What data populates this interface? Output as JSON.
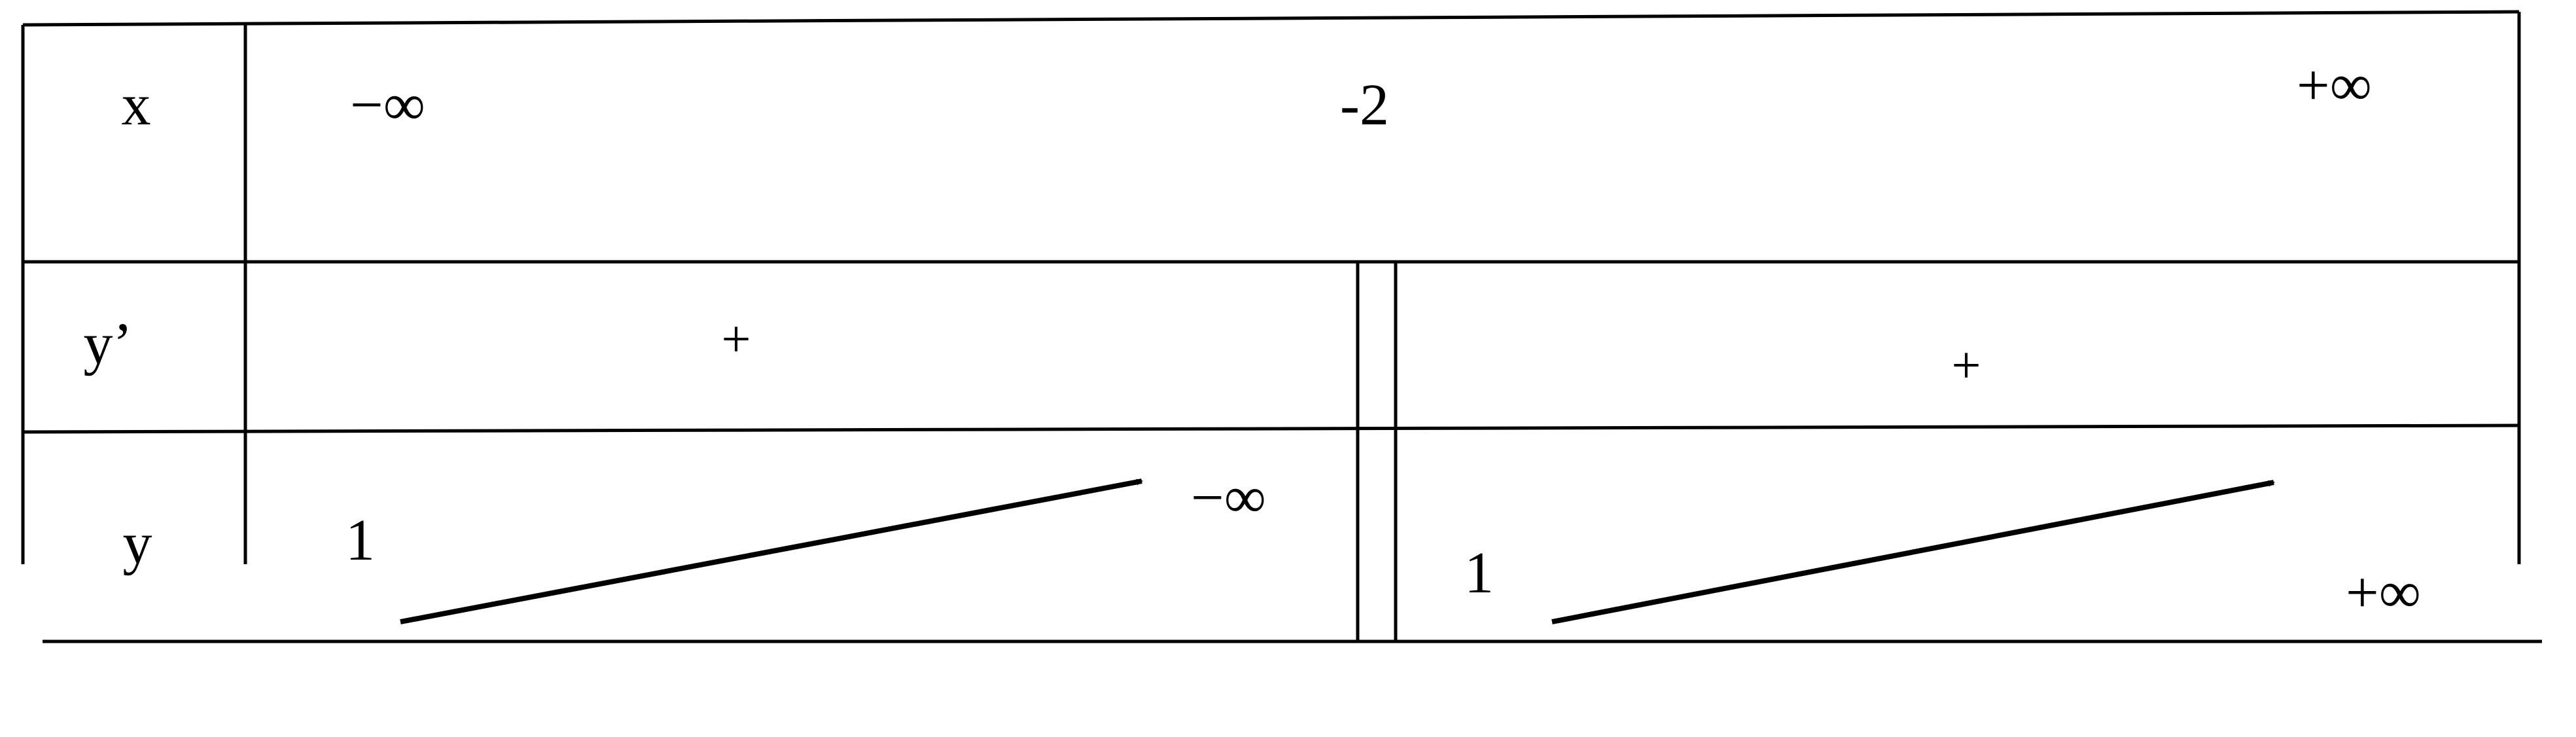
{
  "table": {
    "row_labels": {
      "x": "x",
      "y_prime": "y’",
      "y": "y"
    },
    "x_row": {
      "left": "−∞",
      "middle": "-2",
      "right": "+∞"
    },
    "y_prime_row": {
      "left_sign": "+",
      "right_sign": "+"
    },
    "y_row": {
      "left_start": "1",
      "left_end": "−∞",
      "right_start": "1",
      "right_end": "+∞"
    }
  },
  "colors": {
    "line": "#000000",
    "background": "#ffffff"
  }
}
